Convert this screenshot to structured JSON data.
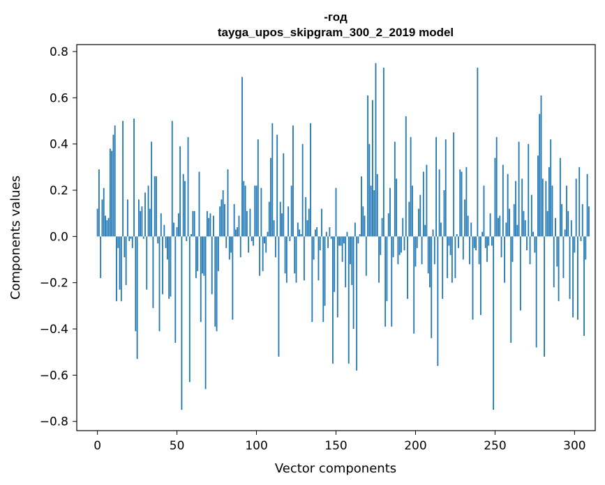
{
  "chart_data": {
    "type": "bar",
    "title_line1": "-год",
    "title_line2": "tayga_upos_skipgram_300_2_2019 model",
    "xlabel": "Vector components",
    "ylabel": "Components values",
    "xlim": [
      -13,
      313
    ],
    "ylim": [
      -0.84,
      0.83
    ],
    "xticks": [
      0,
      50,
      100,
      150,
      200,
      250,
      300
    ],
    "yticks": [
      -0.8,
      -0.6,
      -0.4,
      -0.2,
      0.0,
      0.2,
      0.4,
      0.6,
      0.8
    ],
    "ytick_labels": [
      "−0.8",
      "−0.6",
      "−0.4",
      "−0.2",
      "0.0",
      "0.2",
      "0.4",
      "0.6",
      "0.8"
    ],
    "xtick_labels": [
      "0",
      "50",
      "100",
      "150",
      "200",
      "250",
      "300"
    ],
    "bar_color": "#1f77b4",
    "grid": false,
    "legend": "none",
    "values": [
      0.12,
      0.29,
      -0.18,
      0.16,
      0.21,
      0.09,
      0.07,
      0.08,
      0.38,
      0.37,
      0.44,
      0.48,
      -0.28,
      -0.05,
      -0.23,
      -0.28,
      0.5,
      -0.09,
      -0.21,
      0.16,
      -0.02,
      -0.01,
      -0.05,
      0.51,
      -0.41,
      -0.53,
      0.16,
      0.11,
      0.13,
      -0.01,
      0.19,
      -0.23,
      0.22,
      0.12,
      0.41,
      -0.31,
      0.26,
      0.26,
      -0.03,
      -0.41,
      0.1,
      -0.25,
      0.05,
      -0.05,
      -0.1,
      -0.27,
      -0.26,
      0.5,
      0.06,
      -0.46,
      0.04,
      0.1,
      0.39,
      -0.75,
      0.27,
      0.24,
      -0.02,
      0.43,
      -0.63,
      0.01,
      0.11,
      0.11,
      -0.18,
      -0.15,
      0.28,
      -0.37,
      -0.16,
      -0.17,
      -0.66,
      0.11,
      0.08,
      0.1,
      -0.25,
      0.09,
      -0.39,
      -0.41,
      -0.15,
      0.13,
      0.16,
      0.2,
      0.14,
      -0.05,
      0.29,
      -0.1,
      -0.07,
      -0.36,
      0.14,
      0.03,
      0.04,
      0.09,
      -0.09,
      0.69,
      0.24,
      0.22,
      0.11,
      -0.07,
      0.12,
      -0.02,
      -0.04,
      0.22,
      0.22,
      0.42,
      -0.17,
      0.21,
      -0.15,
      -0.03,
      -0.07,
      0.02,
      0.15,
      0.34,
      0.49,
      0.07,
      -0.09,
      0.44,
      -0.52,
      0.15,
      0.1,
      0.36,
      -0.16,
      -0.2,
      0.13,
      -0.02,
      0.22,
      0.48,
      -0.16,
      -0.2,
      0.06,
      0.03,
      0.01,
      0.4,
      -0.19,
      0.17,
      0.07,
      0.12,
      0.49,
      -0.37,
      -0.1,
      0.03,
      0.04,
      -0.19,
      -0.06,
      0.12,
      -0.37,
      -0.3,
      0.02,
      -0.05,
      0.04,
      -0.01,
      -0.55,
      -0.24,
      0.21,
      -0.35,
      -0.04,
      -0.04,
      -0.11,
      -0.03,
      -0.22,
      0.02,
      -0.55,
      -0.12,
      -0.21,
      -0.4,
      0.06,
      -0.58,
      -0.03,
      0.01,
      0.26,
      0.13,
      0.09,
      -0.17,
      0.61,
      0.4,
      0.22,
      0.59,
      0.2,
      0.75,
      0.27,
      -0.2,
      -0.08,
      0.08,
      0.73,
      -0.39,
      -0.28,
      0.1,
      0.21,
      -0.39,
      -0.09,
      0.41,
      0.25,
      -0.12,
      -0.08,
      -0.07,
      0.08,
      -0.06,
      0.52,
      -0.27,
      0.15,
      0.43,
      0.22,
      -0.42,
      -0.13,
      -0.05,
      0.12,
      0.18,
      -0.12,
      0.28,
      0.05,
      0.31,
      -0.16,
      -0.22,
      -0.44,
      0.03,
      -0.12,
      0.43,
      -0.56,
      0.29,
      0.06,
      -0.27,
      0.2,
      0.42,
      -0.18,
      -0.04,
      -0.08,
      -0.2,
      0.45,
      -0.18,
      0.01,
      -0.05,
      0.29,
      0.28,
      -0.1,
      0.16,
      0.3,
      0.09,
      -0.12,
      0.06,
      -0.36,
      -0.05,
      -0.06,
      0.73,
      -0.12,
      -0.34,
      0.02,
      0.22,
      -0.05,
      -0.11,
      -0.04,
      0.1,
      -0.04,
      -0.75,
      0.34,
      0.43,
      0.08,
      0.09,
      -0.09,
      0.31,
      -0.2,
      0.06,
      0.27,
      0.12,
      -0.46,
      -0.11,
      0.14,
      0.24,
      0.05,
      0.41,
      -0.32,
      0.25,
      0.11,
      0.07,
      -0.06,
      0.4,
      -0.12,
      0.18,
      0.02,
      -0.07,
      -0.48,
      0.35,
      0.53,
      0.61,
      0.25,
      -0.52,
      0.24,
      0.11,
      0.3,
      0.42,
      0.22,
      -0.22,
      0.08,
      -0.13,
      -0.28,
      0.34,
      0.14,
      -0.18,
      0.03,
      0.22,
      0.11,
      -0.27,
      0.07,
      -0.35,
      -0.07,
      0.25,
      -0.36,
      0.3,
      -0.02,
      0.14,
      -0.43,
      -0.1,
      0.27,
      0.13
    ]
  }
}
